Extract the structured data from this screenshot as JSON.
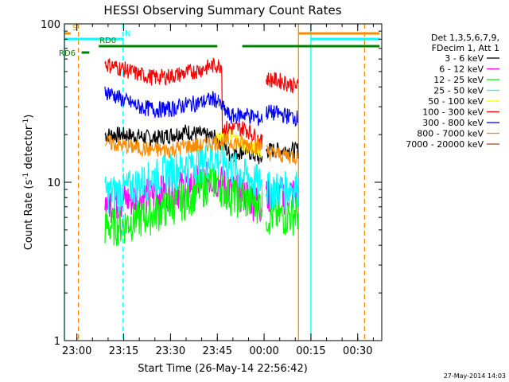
{
  "chart_data": {
    "type": "line",
    "title": "HESSI Observing Summary Count Rates",
    "xlabel": "Start Time (26-May-14 22:56:42)",
    "ylabel_main": "Count Rate (s",
    "ylabel_sup": "-1",
    "ylabel_rest": " detector",
    "ylabel_close": ")",
    "yscale": "log",
    "ylim": [
      1,
      100
    ],
    "xlim_min": [
      -4.0,
      97.7
    ],
    "y_ticks": [
      {
        "value": 1,
        "label": "1"
      },
      {
        "value": 10,
        "label": "10"
      },
      {
        "value": 100,
        "label": "100"
      }
    ],
    "x_ticks": [
      {
        "t": 0,
        "label": "23:00"
      },
      {
        "t": 15,
        "label": "23:15"
      },
      {
        "t": 30,
        "label": "23:30"
      },
      {
        "t": 45,
        "label": "23:45"
      },
      {
        "t": 60,
        "label": "00:00"
      },
      {
        "t": 75,
        "label": "00:15"
      },
      {
        "t": 90,
        "label": "00:30"
      }
    ],
    "legend_header": [
      "Det 1,3,5,6,7,9,",
      "FDecim 1, Att 1"
    ],
    "series": [
      {
        "name": "3 - 6 keV",
        "color": "#000000",
        "points": [
          [
            9,
            20
          ],
          [
            15,
            20
          ],
          [
            25,
            19
          ],
          [
            35,
            21
          ],
          [
            45,
            19
          ],
          [
            49,
            15
          ],
          [
            54,
            16
          ],
          [
            59,
            14
          ],
          [
            61,
            16
          ],
          [
            67,
            16
          ],
          [
            71,
            16
          ]
        ]
      },
      {
        "name": "6 - 12 keV",
        "color": "#ff00ff",
        "points": [
          [
            9,
            7.5
          ],
          [
            15,
            7.8
          ],
          [
            25,
            8.5
          ],
          [
            35,
            9.5
          ],
          [
            44,
            11
          ],
          [
            49,
            9
          ],
          [
            54,
            8.5
          ],
          [
            59,
            7.2
          ],
          [
            61,
            8.5
          ],
          [
            67,
            8.5
          ],
          [
            71,
            8.6
          ]
        ]
      },
      {
        "name": "12 - 25 keV",
        "color": "#00ff00",
        "points": [
          [
            9,
            5.3
          ],
          [
            15,
            5.5
          ],
          [
            25,
            6.5
          ],
          [
            35,
            8
          ],
          [
            44,
            10.5
          ],
          [
            49,
            8.5
          ],
          [
            54,
            7.8
          ],
          [
            59,
            7.5
          ],
          [
            61,
            6.2
          ],
          [
            67,
            6.2
          ],
          [
            71,
            6.5
          ]
        ]
      },
      {
        "name": "25 - 50 keV",
        "color": "#00ffff",
        "points": [
          [
            9,
            8.6
          ],
          [
            15,
            9
          ],
          [
            25,
            11
          ],
          [
            35,
            13
          ],
          [
            44,
            14.5
          ],
          [
            49,
            13
          ],
          [
            54,
            11
          ],
          [
            59,
            10
          ],
          [
            61,
            9.2
          ],
          [
            67,
            9.2
          ],
          [
            71,
            9.5
          ]
        ]
      },
      {
        "name": "50 - 100 keV",
        "color": "#ffff00",
        "points": [
          [
            44,
            18
          ],
          [
            49,
            20
          ],
          [
            54,
            17
          ],
          [
            59,
            16
          ]
        ]
      },
      {
        "name": "100 - 300 keV",
        "color": "#ff0000",
        "points": [
          [
            9,
            56
          ],
          [
            15,
            52
          ],
          [
            20,
            48
          ],
          [
            25,
            46
          ],
          [
            30,
            47
          ],
          [
            35,
            49
          ],
          [
            40,
            52
          ],
          [
            44,
            55
          ],
          [
            49,
            22
          ],
          [
            54,
            22
          ],
          [
            59,
            18
          ],
          [
            61,
            45
          ],
          [
            65,
            44
          ],
          [
            71,
            40
          ]
        ]
      },
      {
        "name": "300 - 800 keV",
        "color": "#0000ff",
        "points": [
          [
            9,
            38
          ],
          [
            15,
            33
          ],
          [
            20,
            30
          ],
          [
            25,
            29
          ],
          [
            30,
            29
          ],
          [
            35,
            31
          ],
          [
            40,
            32
          ],
          [
            44,
            34
          ],
          [
            49,
            26
          ],
          [
            54,
            27
          ],
          [
            59,
            25
          ],
          [
            61,
            28
          ],
          [
            65,
            27
          ],
          [
            71,
            25.5
          ]
        ]
      },
      {
        "name": "800 - 7000 keV",
        "color": "#ff8c00",
        "points": [
          [
            9,
            18
          ],
          [
            15,
            17
          ],
          [
            20,
            16.5
          ],
          [
            25,
            16
          ],
          [
            30,
            16
          ],
          [
            35,
            17
          ],
          [
            40,
            17
          ],
          [
            44,
            18
          ],
          [
            49,
            18
          ],
          [
            54,
            17.5
          ],
          [
            59,
            17
          ],
          [
            61,
            15.5
          ],
          [
            65,
            15
          ],
          [
            71,
            14.5
          ]
        ]
      },
      {
        "name": "7000 - 20000 keV",
        "color": "#a0522d",
        "points": []
      }
    ],
    "attenuator_lines": [
      {
        "label": "S",
        "color": "#ff8c00",
        "y": 1,
        "start": -4,
        "end": -2
      },
      {
        "label": "",
        "color": "#ff8c00",
        "y": 1,
        "start": 71,
        "end": 97
      },
      {
        "label": "N",
        "color": "#00ffff",
        "y": 2,
        "start": -4,
        "end": 15
      },
      {
        "label": "",
        "color": "#00ffff",
        "y": 2,
        "start": 75,
        "end": 97
      },
      {
        "label": "RD0",
        "color": "#008000",
        "y": 3,
        "start": 7,
        "end": 45
      },
      {
        "label": "",
        "color": "#008000",
        "y": 3,
        "start": 53,
        "end": 97
      },
      {
        "label": "RD6",
        "color": "#008000",
        "y": 4,
        "start": 1.5,
        "end": 4
      }
    ],
    "vertical_markers": [
      {
        "t": -4.0,
        "color": "#00ffff",
        "style": "solid"
      },
      {
        "t": 0.5,
        "color": "#ff8c00",
        "style": "dashed"
      },
      {
        "t": 14.8,
        "color": "#00ffff",
        "style": "dashed"
      },
      {
        "t": 71.0,
        "color": "#ff8c00",
        "style": "solid"
      },
      {
        "t": 75.0,
        "color": "#00ffff",
        "style": "solid"
      },
      {
        "t": 92.2,
        "color": "#ff8c00",
        "style": "dashed"
      }
    ]
  },
  "footer": {
    "timestamp": "27-May-2014 14:03"
  }
}
